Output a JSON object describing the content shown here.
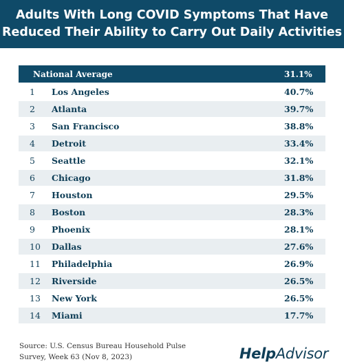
{
  "chart_data": {
    "type": "table",
    "title_lines": [
      "Adults With Long COVID Symptoms That Have",
      "Reduced Their Ability to Carry Out Daily Activities"
    ],
    "national": {
      "label": "National Average",
      "value": "31.1%"
    },
    "rows": [
      {
        "rank": "1",
        "city": "Los Angeles",
        "value": "40.7%"
      },
      {
        "rank": "2",
        "city": "Atlanta",
        "value": "39.7%"
      },
      {
        "rank": "3",
        "city": "San Francisco",
        "value": "38.8%"
      },
      {
        "rank": "4",
        "city": "Detroit",
        "value": "33.4%"
      },
      {
        "rank": "5",
        "city": "Seattle",
        "value": "32.1%"
      },
      {
        "rank": "6",
        "city": "Chicago",
        "value": "31.8%"
      },
      {
        "rank": "7",
        "city": "Houston",
        "value": "29.5%"
      },
      {
        "rank": "8",
        "city": "Boston",
        "value": "28.3%"
      },
      {
        "rank": "9",
        "city": "Phoenix",
        "value": "28.1%"
      },
      {
        "rank": "10",
        "city": "Dallas",
        "value": "27.6%"
      },
      {
        "rank": "11",
        "city": "Philadelphia",
        "value": "26.9%"
      },
      {
        "rank": "12",
        "city": "Riverside",
        "value": "26.5%"
      },
      {
        "rank": "13",
        "city": "New York",
        "value": "26.5%"
      },
      {
        "rank": "14",
        "city": "Miami",
        "value": "17.7%"
      }
    ],
    "source_lines": [
      "Source: U.S. Census Bureau Household Pulse",
      "Survey, Week 63 (Nov 8, 2023)"
    ]
  },
  "logo": {
    "part1": "Help",
    "part2": "Advisor"
  },
  "colors": {
    "header_bg": "#0f4a68",
    "row_shade": "#e9eef1",
    "text": "#0f3e57"
  }
}
